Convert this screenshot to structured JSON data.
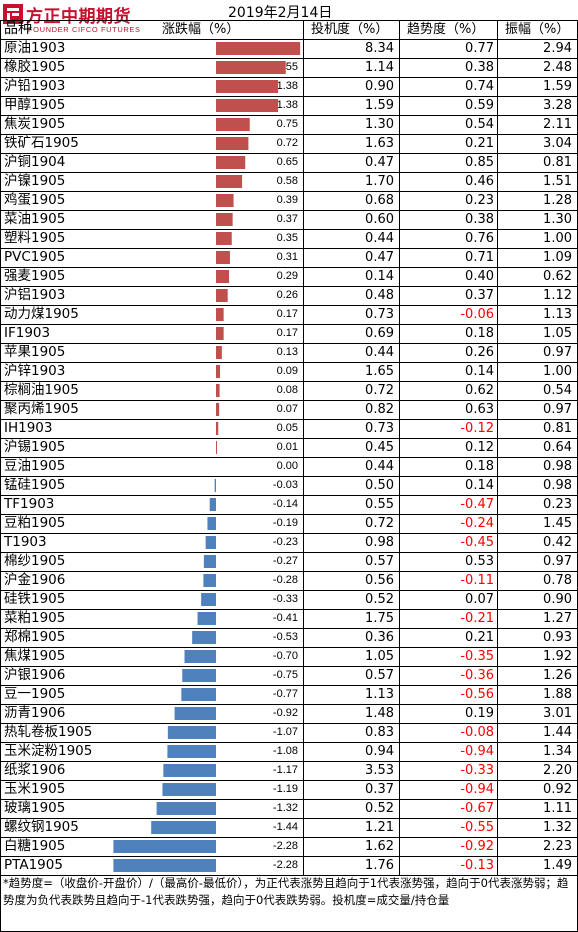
{
  "brand": {
    "name_cn": "方正中期期货",
    "name_en": "FOUNDER CIFCO FUTURES"
  },
  "report_date": "2019年2月14日",
  "table": {
    "headers": {
      "name": "品种",
      "change": "涨跌幅（%）",
      "investment": "投机度（%）",
      "trend": "趋势度（%）",
      "amplitude": "振幅（%）"
    }
  },
  "colors": {
    "positive_bar": "#c0504d",
    "negative_bar": "#4f81bd",
    "negative_trend_text": "#ff0000"
  },
  "chart_data": {
    "type": "bar",
    "orientation": "horizontal",
    "categories": [
      "原油1903",
      "橡胶1905",
      "沪铅1903",
      "甲醇1905",
      "焦炭1905",
      "铁矿石1905",
      "沪铜1904",
      "沪镍1905",
      "鸡蛋1905",
      "菜油1905",
      "塑料1905",
      "PVC1905",
      "强麦1905",
      "沪铝1903",
      "动力煤1905",
      "IF1903",
      "苹果1905",
      "沪锌1903",
      "棕榈油1905",
      "聚丙烯1905",
      "IH1903",
      "沪锡1905",
      "豆油1905",
      "锰硅1905",
      "TF1903",
      "豆粕1905",
      "T1903",
      "棉纱1905",
      "沪金1906",
      "硅铁1905",
      "菜粕1905",
      "郑棉1905",
      "焦煤1905",
      "沪银1906",
      "豆一1905",
      "沥青1906",
      "热轧卷板1905",
      "玉米淀粉1905",
      "纸浆1906",
      "玉米1905",
      "玻璃1905",
      "螺纹钢1905",
      "白糖1905",
      "PTA1905"
    ],
    "series": [
      {
        "name": "涨跌幅（%）",
        "values": [
          "1.87",
          "1.55",
          "1.38",
          "1.38",
          "0.75",
          "0.72",
          "0.65",
          "0.58",
          "0.39",
          "0.37",
          "0.35",
          "0.31",
          "0.29",
          "0.26",
          "0.17",
          "0.17",
          "0.13",
          "0.09",
          "0.08",
          "0.07",
          "0.05",
          "0.01",
          "0.00",
          "-0.03",
          "-0.14",
          "-0.19",
          "-0.23",
          "-0.27",
          "-0.28",
          "-0.33",
          "-0.41",
          "-0.53",
          "-0.70",
          "-0.75",
          "-0.77",
          "-0.92",
          "-1.07",
          "-1.08",
          "-1.17",
          "-1.19",
          "-1.32",
          "-1.44",
          "-2.28",
          "-2.28"
        ]
      },
      {
        "name": "投机度（%）",
        "values": [
          "8.34",
          "1.14",
          "0.90",
          "1.59",
          "1.30",
          "1.63",
          "0.47",
          "1.70",
          "0.68",
          "0.60",
          "0.44",
          "0.47",
          "0.14",
          "0.48",
          "0.73",
          "0.69",
          "0.44",
          "1.65",
          "0.72",
          "0.82",
          "0.73",
          "0.45",
          "0.44",
          "0.50",
          "0.55",
          "0.72",
          "0.98",
          "0.57",
          "0.56",
          "0.52",
          "1.75",
          "0.36",
          "1.05",
          "0.57",
          "1.13",
          "1.48",
          "0.83",
          "0.94",
          "3.53",
          "0.37",
          "0.52",
          "1.21",
          "1.62",
          "1.76"
        ]
      },
      {
        "name": "趋势度（%）",
        "values": [
          "0.77",
          "0.38",
          "0.74",
          "0.59",
          "0.54",
          "0.21",
          "0.85",
          "0.46",
          "0.23",
          "0.38",
          "0.76",
          "0.71",
          "0.40",
          "0.37",
          "-0.06",
          "0.18",
          "0.26",
          "0.14",
          "0.62",
          "0.63",
          "-0.12",
          "0.12",
          "0.18",
          "0.14",
          "-0.47",
          "-0.24",
          "-0.45",
          "0.53",
          "-0.11",
          "0.07",
          "-0.21",
          "0.21",
          "-0.35",
          "-0.36",
          "-0.56",
          "0.19",
          "-0.08",
          "-0.94",
          "-0.33",
          "-0.94",
          "-0.67",
          "-0.55",
          "-0.92",
          "-0.13"
        ]
      },
      {
        "name": "振幅（%）",
        "values": [
          "2.94",
          "2.48",
          "1.59",
          "3.28",
          "2.11",
          "3.04",
          "0.81",
          "1.51",
          "1.28",
          "1.30",
          "1.00",
          "1.09",
          "0.62",
          "1.12",
          "1.13",
          "1.05",
          "0.97",
          "1.00",
          "0.54",
          "0.97",
          "0.81",
          "0.64",
          "0.98",
          "0.98",
          "0.23",
          "1.45",
          "0.42",
          "0.97",
          "0.78",
          "0.90",
          "1.27",
          "0.93",
          "1.92",
          "1.26",
          "1.88",
          "3.01",
          "1.44",
          "1.34",
          "2.20",
          "0.92",
          "1.11",
          "1.32",
          "2.23",
          "1.49"
        ]
      }
    ]
  },
  "footnote": "*趋势度=（收盘价-开盘价）/（最高价-最低价），为正代表涨势且趋向于1代表涨势强，趋向于0代表涨势弱；趋势度为负代表跌势且趋向于-1代表跌势强，趋向于0代表跌势弱。投机度=成交量/持仓量"
}
